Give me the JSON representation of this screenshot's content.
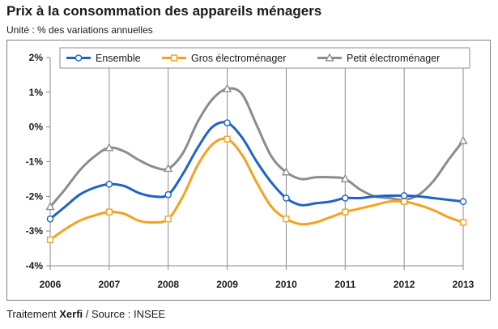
{
  "header": {
    "title": "Prix à la consommation des appareils ménagers",
    "subtitle": "Unité : % des variations annuelles"
  },
  "footer": {
    "prefix": "Traitement ",
    "brand": "Xerfi",
    "suffix": " / Source : INSEE"
  },
  "chart_data": {
    "type": "line",
    "title": "Prix à la consommation des appareils ménagers",
    "subtitle": "Unité : % des variations annuelles",
    "xlabel": "",
    "ylabel": "",
    "ylim": [
      -4,
      2
    ],
    "xlim": [
      2006,
      2013
    ],
    "y_ticks": [
      2,
      1,
      0,
      -1,
      -2,
      -3,
      -4
    ],
    "y_tick_labels": [
      "2%",
      "1%",
      "0%",
      "-1%",
      "-2%",
      "-3%",
      "-4%"
    ],
    "x_ticks": [
      2006,
      2007,
      2008,
      2009,
      2010,
      2011,
      2012,
      2013
    ],
    "x_tick_labels": [
      "2006",
      "2007",
      "2008",
      "2009",
      "2010",
      "2011",
      "2012",
      "2013"
    ],
    "grid": "vertical",
    "legend_position": "top",
    "series": [
      {
        "name": "Ensemble",
        "color": "#1f63c6",
        "marker": "circle",
        "x": [
          2006,
          2006.25,
          2006.5,
          2006.75,
          2007,
          2007.25,
          2007.5,
          2007.75,
          2008,
          2008.25,
          2008.5,
          2008.75,
          2009,
          2009.25,
          2009.5,
          2009.75,
          2010,
          2010.25,
          2010.5,
          2010.75,
          2011,
          2011.25,
          2011.5,
          2011.75,
          2012,
          2012.25,
          2012.5,
          2012.75,
          2013
        ],
        "y": [
          -2.65,
          -2.3,
          -1.95,
          -1.75,
          -1.65,
          -1.7,
          -1.9,
          -2.0,
          -1.95,
          -1.35,
          -0.6,
          0.0,
          0.12,
          -0.3,
          -1.0,
          -1.6,
          -2.05,
          -2.25,
          -2.2,
          -2.15,
          -2.05,
          -2.05,
          -2.0,
          -1.98,
          -1.98,
          -2.0,
          -2.05,
          -2.1,
          -2.15
        ],
        "marker_x": [
          2006,
          2007,
          2008,
          2009,
          2010,
          2011,
          2012,
          2013
        ],
        "marker_y": [
          -2.65,
          -1.65,
          -1.95,
          0.12,
          -2.05,
          -2.05,
          -1.98,
          -2.15
        ]
      },
      {
        "name": "Gros électroménager",
        "color": "#f4a21f",
        "marker": "square",
        "x": [
          2006,
          2006.25,
          2006.5,
          2006.75,
          2007,
          2007.25,
          2007.5,
          2007.75,
          2008,
          2008.25,
          2008.5,
          2008.75,
          2009,
          2009.25,
          2009.5,
          2009.75,
          2010,
          2010.25,
          2010.5,
          2010.75,
          2011,
          2011.25,
          2011.5,
          2011.75,
          2012,
          2012.25,
          2012.5,
          2012.75,
          2013
        ],
        "y": [
          -3.25,
          -2.95,
          -2.7,
          -2.55,
          -2.45,
          -2.5,
          -2.7,
          -2.75,
          -2.65,
          -2.0,
          -1.1,
          -0.5,
          -0.35,
          -0.8,
          -1.6,
          -2.3,
          -2.65,
          -2.8,
          -2.75,
          -2.6,
          -2.45,
          -2.35,
          -2.25,
          -2.15,
          -2.15,
          -2.25,
          -2.4,
          -2.6,
          -2.75
        ],
        "marker_x": [
          2006,
          2007,
          2008,
          2009,
          2010,
          2011,
          2012,
          2013
        ],
        "marker_y": [
          -3.25,
          -2.45,
          -2.65,
          -0.35,
          -2.65,
          -2.45,
          -2.15,
          -2.75
        ]
      },
      {
        "name": "Petit électroménager",
        "color": "#8c8c8c",
        "marker": "triangle",
        "x": [
          2006,
          2006.25,
          2006.5,
          2006.75,
          2007,
          2007.25,
          2007.5,
          2007.75,
          2008,
          2008.25,
          2008.5,
          2008.75,
          2009,
          2009.25,
          2009.5,
          2009.75,
          2010,
          2010.25,
          2010.5,
          2010.75,
          2011,
          2011.25,
          2011.5,
          2011.75,
          2012,
          2012.25,
          2012.5,
          2012.75,
          2013
        ],
        "y": [
          -2.3,
          -1.8,
          -1.25,
          -0.85,
          -0.6,
          -0.7,
          -0.95,
          -1.15,
          -1.2,
          -0.75,
          0.15,
          0.8,
          1.1,
          0.95,
          0.05,
          -0.85,
          -1.3,
          -1.5,
          -1.45,
          -1.45,
          -1.5,
          -1.8,
          -2.0,
          -2.05,
          -2.1,
          -1.95,
          -1.55,
          -0.95,
          -0.4
        ],
        "marker_x": [
          2006,
          2007,
          2008,
          2009,
          2010,
          2011,
          2012,
          2013
        ],
        "marker_y": [
          -2.3,
          -0.6,
          -1.2,
          1.1,
          -1.3,
          -1.5,
          -2.1,
          -0.4
        ]
      }
    ]
  }
}
